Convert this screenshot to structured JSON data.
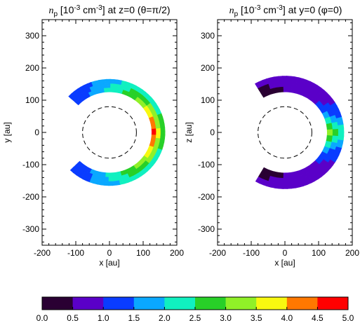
{
  "colors": {
    "palette": [
      "#2a0033",
      "#5a00c8",
      "#0a3cff",
      "#0aa8ff",
      "#10f0c0",
      "#28d028",
      "#90f028",
      "#f8f810",
      "#ff7800",
      "#ff0000"
    ],
    "guide_circle": "#000000"
  },
  "chart_data": [
    {
      "type": "heatmap",
      "title_parts": {
        "symbol": "n",
        "sub": "p",
        "pre": " [10",
        "exp1": "-3",
        "mid": " cm",
        "exp2": "-3",
        "post": "] at z=0 (θ=π/2)"
      },
      "xlabel": "x [au]",
      "ylabel": "y [au]",
      "xlim": [
        -200,
        200
      ],
      "ylim": [
        -350,
        350
      ],
      "xticks": [
        -200,
        -100,
        0,
        100,
        200
      ],
      "yticks": [
        -300,
        -200,
        -100,
        0,
        100,
        200,
        300
      ],
      "guide_circle_radius": 80,
      "shell": {
        "inner_radius": 125,
        "outer_radius": 165,
        "theta_range_deg": [
          -135,
          135
        ]
      },
      "density_by_angle": [
        {
          "theta_deg": 0,
          "inner": 4.6,
          "middle": 3.6,
          "outer": 2.6
        },
        {
          "theta_deg": 20,
          "inner": 4.0,
          "middle": 3.3,
          "outer": 2.5
        },
        {
          "theta_deg": 45,
          "inner": 3.2,
          "middle": 2.9,
          "outer": 2.3
        },
        {
          "theta_deg": 70,
          "inner": 2.6,
          "middle": 2.4,
          "outer": 2.1
        },
        {
          "theta_deg": 95,
          "inner": 2.0,
          "middle": 1.9,
          "outer": 1.8
        },
        {
          "theta_deg": 120,
          "inner": 1.4,
          "middle": 1.3,
          "outer": 1.3
        },
        {
          "theta_deg": 135,
          "inner": 1.1,
          "middle": 1.1,
          "outer": 1.1
        }
      ]
    },
    {
      "type": "heatmap",
      "title_parts": {
        "symbol": "n",
        "sub": "p",
        "pre": " [10",
        "exp1": "-3",
        "mid": " cm",
        "exp2": "-3",
        "post": "] at y=0 (φ=0)"
      },
      "xlabel": "x [au]",
      "ylabel": "z [au]",
      "xlim": [
        -200,
        200
      ],
      "ylim": [
        -350,
        350
      ],
      "xticks": [
        -200,
        -100,
        0,
        100,
        200
      ],
      "yticks": [
        -300,
        -200,
        -100,
        0,
        100,
        200,
        300
      ],
      "guide_circle_radius": 80,
      "shell": {
        "inner_radius": 125,
        "outer_radius": 175,
        "theta_range_deg": [
          -120,
          120
        ]
      },
      "density_by_angle": [
        {
          "theta_deg": 0,
          "inner": 3.1,
          "middle": 2.7,
          "outer": 2.3
        },
        {
          "theta_deg": 10,
          "inner": 2.6,
          "middle": 2.2,
          "outer": 1.9
        },
        {
          "theta_deg": 25,
          "inner": 1.6,
          "middle": 1.3,
          "outer": 1.1
        },
        {
          "theta_deg": 45,
          "inner": 0.9,
          "middle": 0.8,
          "outer": 0.8
        },
        {
          "theta_deg": 80,
          "inner": 0.6,
          "middle": 0.7,
          "outer": 0.7
        },
        {
          "theta_deg": 120,
          "inner": 0.3,
          "middle": 0.4,
          "outer": 0.5
        }
      ]
    }
  ],
  "colorbar": {
    "min": 0.0,
    "max": 5.0,
    "step": 0.5,
    "tick_labels": [
      "0.0",
      "0.5",
      "1.0",
      "1.5",
      "2.0",
      "2.5",
      "3.0",
      "3.5",
      "4.0",
      "4.5",
      "5.0"
    ]
  }
}
